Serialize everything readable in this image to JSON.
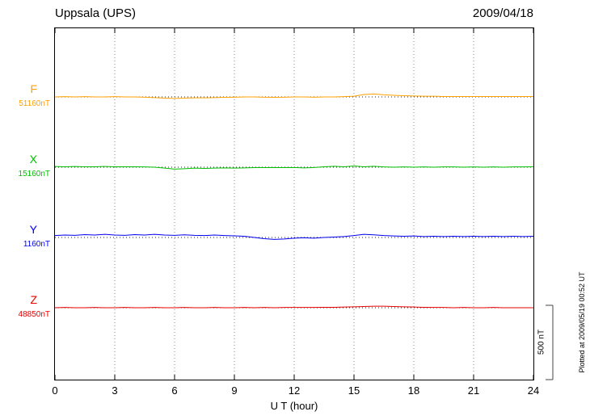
{
  "chart_data": {
    "type": "line",
    "title": "Uppsala (UPS)",
    "date": "2009/04/18",
    "xlabel": "U T (hour)",
    "xlim": [
      0,
      24
    ],
    "x_ticks": [
      0,
      3,
      6,
      9,
      12,
      15,
      18,
      21,
      24
    ],
    "x_step_hours": 0.5,
    "grid": "dotted vertical lines at 3-hour intervals; dotted horizontal baseline per trace",
    "scale_bar": {
      "label": "500 nT",
      "nT": 500
    },
    "plotted_at": "Plotted at 2009/05/19 00:52 UT",
    "series": [
      {
        "name": "F",
        "baseline_label": "51160nT",
        "baseline_nT": 51160,
        "color": "#FFA000",
        "offsets_nT": [
          0,
          2,
          0,
          2,
          0,
          0,
          2,
          0,
          0,
          -2,
          -5,
          -8,
          -10,
          -8,
          -6,
          -6,
          -5,
          -3,
          -2,
          0,
          0,
          -2,
          -3,
          -2,
          0,
          0,
          -2,
          0,
          0,
          2,
          5,
          16,
          20,
          14,
          11,
          8,
          6,
          5,
          5,
          3,
          3,
          3,
          3,
          3,
          3,
          3,
          3,
          3,
          3
        ]
      },
      {
        "name": "X",
        "baseline_label": "15160nT",
        "baseline_nT": 15160,
        "color": "#00BE00",
        "offsets_nT": [
          5,
          3,
          5,
          3,
          3,
          5,
          3,
          3,
          3,
          2,
          0,
          -6,
          -13,
          -10,
          -6,
          -8,
          -6,
          -5,
          -6,
          -5,
          -3,
          -3,
          -2,
          -3,
          -2,
          -5,
          -2,
          3,
          6,
          3,
          8,
          3,
          6,
          2,
          0,
          2,
          0,
          2,
          0,
          2,
          2,
          0,
          2,
          0,
          2,
          0,
          2,
          2,
          3
        ]
      },
      {
        "name": "Y",
        "baseline_label": "1160nT",
        "baseline_nT": 1160,
        "color": "#0000F0",
        "offsets_nT": [
          13,
          16,
          14,
          19,
          16,
          21,
          16,
          14,
          19,
          16,
          21,
          16,
          14,
          18,
          14,
          13,
          16,
          13,
          11,
          8,
          0,
          -8,
          -13,
          -10,
          -5,
          -2,
          -5,
          0,
          3,
          6,
          13,
          21,
          18,
          13,
          10,
          8,
          10,
          6,
          8,
          6,
          8,
          6,
          8,
          6,
          8,
          6,
          8,
          6,
          8
        ]
      },
      {
        "name": "Z",
        "baseline_label": "48850nT",
        "baseline_nT": 48850,
        "color": "#E80000",
        "offsets_nT": [
          0,
          2,
          0,
          0,
          2,
          0,
          0,
          2,
          0,
          0,
          2,
          0,
          0,
          2,
          0,
          0,
          2,
          0,
          0,
          2,
          0,
          2,
          0,
          2,
          2,
          2,
          2,
          3,
          3,
          5,
          6,
          8,
          10,
          10,
          8,
          6,
          5,
          3,
          2,
          2,
          0,
          2,
          0,
          0,
          2,
          0,
          0,
          0,
          0
        ]
      }
    ]
  }
}
